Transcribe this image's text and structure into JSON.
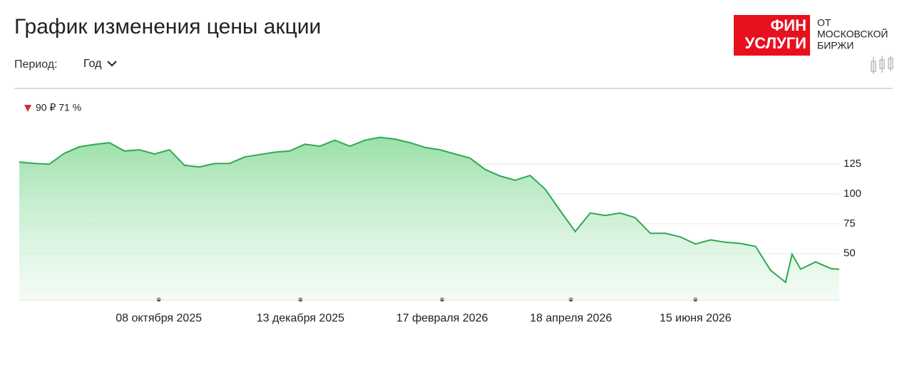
{
  "header": {
    "title": "График изменения цены акции",
    "period_label": "Период:",
    "period_value": "Год"
  },
  "logo": {
    "line1": "ФИН",
    "line2": "УСЛУГИ",
    "side1": "ОТ",
    "side2": "МОСКОВСКОЙ",
    "side3": "БИРЖИ"
  },
  "change": "90 ₽ 71 %",
  "chart_data": {
    "type": "line",
    "x": [
      "2025-08-04",
      "2025-08-11",
      "2025-08-18",
      "2025-08-25",
      "2025-09-01",
      "2025-09-08",
      "2025-09-15",
      "2025-09-22",
      "2025-09-29",
      "2025-10-06",
      "2025-10-13",
      "2025-10-20",
      "2025-10-27",
      "2025-11-03",
      "2025-11-10",
      "2025-11-17",
      "2025-11-24",
      "2025-12-01",
      "2025-12-08",
      "2025-12-15",
      "2025-12-22",
      "2025-12-29",
      "2026-01-05",
      "2026-01-12",
      "2026-01-19",
      "2026-01-26",
      "2026-02-02",
      "2026-02-09",
      "2026-02-16",
      "2026-02-23",
      "2026-03-02",
      "2026-03-09",
      "2026-03-16",
      "2026-03-23",
      "2026-03-30",
      "2026-04-06",
      "2026-04-13",
      "2026-04-20",
      "2026-04-27",
      "2026-05-04",
      "2026-05-11",
      "2026-05-18",
      "2026-05-25",
      "2026-06-01",
      "2026-06-08",
      "2026-06-15",
      "2026-06-22",
      "2026-06-29",
      "2026-07-06",
      "2026-07-13",
      "2026-07-20",
      "2026-07-27",
      "2026-07-30",
      "2026-08-03",
      "2026-08-10",
      "2026-08-17",
      "2026-08-21"
    ],
    "series": [
      {
        "color": "#2eaa52",
        "values": [
          126.8,
          125.6,
          125,
          134,
          139.5,
          141.5,
          143,
          136,
          137,
          133.5,
          137,
          124,
          122.6,
          125.5,
          125.6,
          131,
          133,
          135,
          136,
          141.7,
          140,
          145,
          140,
          145,
          147.5,
          146,
          143,
          139,
          137,
          133.5,
          130,
          120.5,
          115,
          111.5,
          115.5,
          104,
          86,
          68.5,
          84,
          82,
          84,
          80,
          67,
          67,
          64,
          58,
          61.5,
          59.5,
          58.5,
          56,
          36,
          26,
          49.5,
          37,
          43,
          37.5,
          36.9
        ]
      }
    ],
    "xlim": [
      "2025-08-04",
      "2026-08-21"
    ],
    "xticks": [
      {
        "value": "2025-10-08",
        "label": "08 октября 2025"
      },
      {
        "value": "2025-12-13",
        "label": "13 декабря 2025"
      },
      {
        "value": "2026-02-17",
        "label": "17 февраля 2026"
      },
      {
        "value": "2026-04-18",
        "label": "18 апреля 2026"
      },
      {
        "value": "2026-06-15",
        "label": "15 июня 2026"
      }
    ],
    "ylim": [
      11,
      155
    ],
    "yticks": [
      50,
      75,
      100,
      125
    ],
    "grid": true
  }
}
